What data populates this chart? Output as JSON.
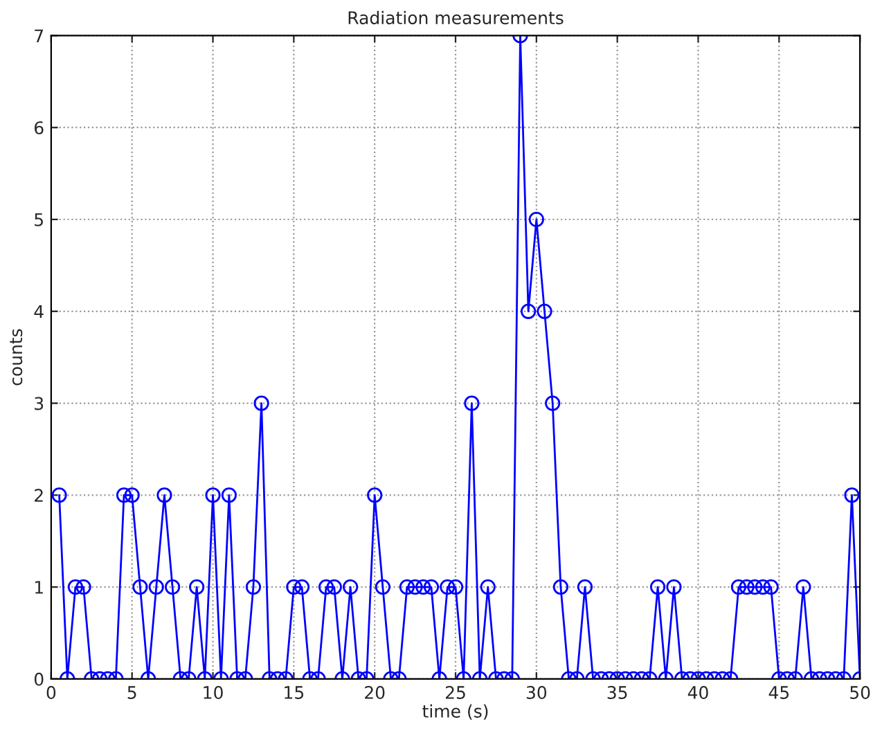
{
  "chart_data": {
    "type": "line",
    "title": "Radiation measurements",
    "xlabel": "time (s)",
    "ylabel": "counts",
    "x": [
      0.5,
      1,
      1.5,
      2,
      2.5,
      3,
      3.5,
      4,
      4.5,
      5,
      5.5,
      6,
      6.5,
      7,
      7.5,
      8,
      8.5,
      9,
      9.5,
      10,
      10.5,
      11,
      11.5,
      12,
      12.5,
      13,
      13.5,
      14,
      14.5,
      15,
      15.5,
      16,
      16.5,
      17,
      17.5,
      18,
      18.5,
      19,
      19.5,
      20,
      20.5,
      21,
      21.5,
      22,
      22.5,
      23,
      23.5,
      24,
      24.5,
      25,
      25.5,
      26,
      26.5,
      27,
      27.5,
      28,
      28.5,
      29,
      29.5,
      30,
      30.5,
      31,
      31.5,
      32,
      32.5,
      33,
      33.5,
      34,
      34.5,
      35,
      35.5,
      36,
      36.5,
      37,
      37.5,
      38,
      38.5,
      39,
      39.5,
      40,
      40.5,
      41,
      41.5,
      42,
      42.5,
      43,
      43.5,
      44,
      44.5,
      45,
      45.5,
      46,
      46.5,
      47,
      47.5,
      48,
      48.5,
      49,
      49.5,
      50
    ],
    "series": [
      {
        "color": "#0000ff",
        "values": [
          2,
          0,
          1,
          1,
          0,
          0,
          0,
          0,
          2,
          2,
          1,
          0,
          1,
          2,
          1,
          0,
          0,
          1,
          0,
          2,
          0,
          2,
          0,
          0,
          1,
          3,
          0,
          0,
          0,
          1,
          1,
          0,
          0,
          1,
          1,
          0,
          1,
          0,
          0,
          2,
          1,
          0,
          0,
          1,
          1,
          1,
          1,
          0,
          1,
          1,
          0,
          3,
          0,
          1,
          0,
          0,
          0,
          7,
          4,
          5,
          4,
          3,
          1,
          0,
          0,
          1,
          0,
          0,
          0,
          0,
          0,
          0,
          0,
          0,
          1,
          0,
          1,
          0,
          0,
          0,
          0,
          0,
          0,
          0,
          1,
          1,
          1,
          1,
          1,
          0,
          0,
          0,
          1,
          0,
          0,
          0,
          0,
          0,
          2,
          0
        ]
      }
    ],
    "xlim": [
      0,
      50
    ],
    "ylim": [
      0,
      7
    ],
    "xticks": [
      0,
      5,
      10,
      15,
      20,
      25,
      30,
      35,
      40,
      45,
      50
    ],
    "yticks": [
      0,
      1,
      2,
      3,
      4,
      5,
      6,
      7
    ],
    "grid": true,
    "marker": "circle",
    "line_style": "solid"
  }
}
